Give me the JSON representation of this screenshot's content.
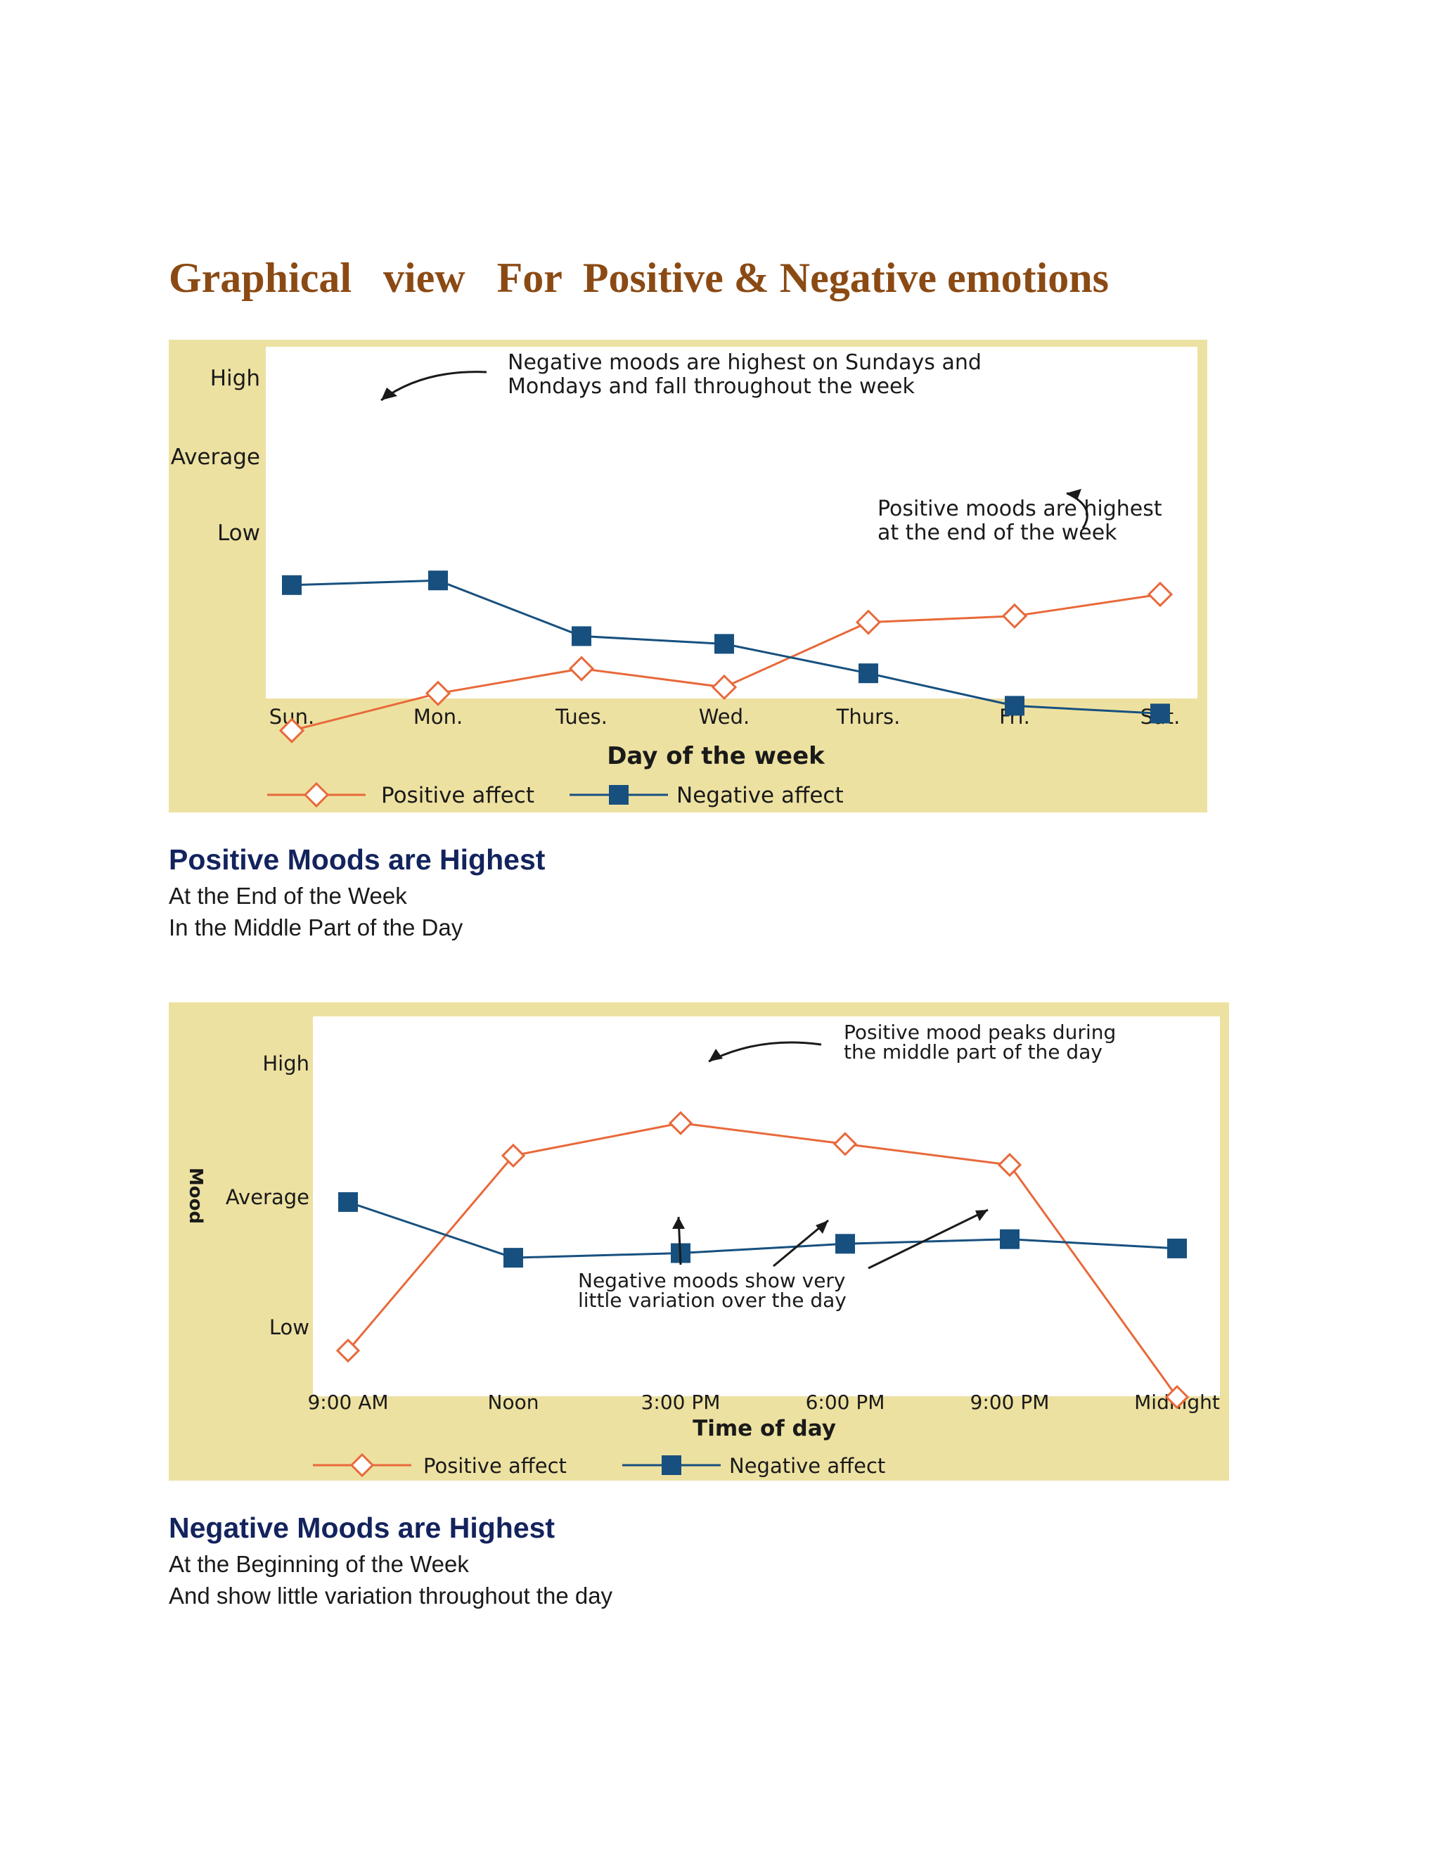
{
  "page": {
    "title": "Graphical   view   For  Positive & Negative emotions",
    "sections": [
      {
        "heading": "Positive Moods are Highest",
        "lines": [
          "At the End of the Week",
          "In the Middle Part of the Day"
        ]
      },
      {
        "heading": "Negative Moods are Highest",
        "lines": [
          "At the Beginning of the Week",
          "And show little variation throughout the day"
        ]
      }
    ]
  },
  "colors": {
    "positive": "#e8693a",
    "negative": "#17507f",
    "panel": "#ede1a1",
    "title": "#8b4a14",
    "heading": "#13235d"
  },
  "chart_data": [
    {
      "type": "line",
      "xlabel": "Day of the week",
      "ylabel": "",
      "ylim": [
        0,
        10
      ],
      "y_ticks": [
        {
          "label": "High",
          "value": 10
        },
        {
          "label": "Average",
          "value": 5
        },
        {
          "label": "Low",
          "value": 0
        }
      ],
      "categories": [
        "Sun.",
        "Mon.",
        "Tues.",
        "Wed.",
        "Thurs.",
        "Fri.",
        "Sat."
      ],
      "series": [
        {
          "name": "Positive affect",
          "values": [
            0.2,
            2.6,
            4.2,
            3.0,
            7.2,
            7.6,
            9.0
          ]
        },
        {
          "name": "Negative affect",
          "values": [
            9.6,
            9.9,
            6.3,
            5.8,
            3.9,
            1.8,
            1.3
          ]
        }
      ],
      "annotations": [
        {
          "lines": [
            "Negative moods are highest on Sundays and",
            "Mondays and fall throughout the week"
          ],
          "points_to": {
            "series": 1,
            "index": 0
          }
        },
        {
          "lines": [
            "Positive moods are highest",
            "at the end of the week"
          ],
          "points_to": {
            "series": 0,
            "index": 5
          }
        }
      ],
      "legend_position": "bottom",
      "grid": false
    },
    {
      "type": "line",
      "xlabel": "Time of day",
      "ylabel": "Mood",
      "ylim": [
        0,
        10
      ],
      "y_ticks": [
        {
          "label": "High",
          "value": 10
        },
        {
          "label": "Average",
          "value": 5
        },
        {
          "label": "Low",
          "value": 0
        }
      ],
      "categories": [
        "9:00 AM",
        "Noon",
        "3:00 PM",
        "6:00 PM",
        "9:00 PM",
        "Midnight"
      ],
      "series": [
        {
          "name": "Positive affect",
          "values": [
            0.3,
            8.7,
            10.1,
            9.2,
            8.3,
            -1.7
          ]
        },
        {
          "name": "Negative affect",
          "values": [
            6.7,
            4.3,
            4.5,
            4.9,
            5.1,
            4.7
          ]
        }
      ],
      "annotations": [
        {
          "lines": [
            "Positive mood peaks during",
            "the middle part of the day"
          ],
          "points_to": {
            "series": 0,
            "index": 2
          }
        },
        {
          "lines": [
            "Negative moods show very",
            "little variation over the day"
          ],
          "points_to": {
            "series": 1,
            "index": [
              2,
              3,
              4
            ]
          }
        }
      ],
      "legend_position": "bottom",
      "grid": false
    }
  ]
}
